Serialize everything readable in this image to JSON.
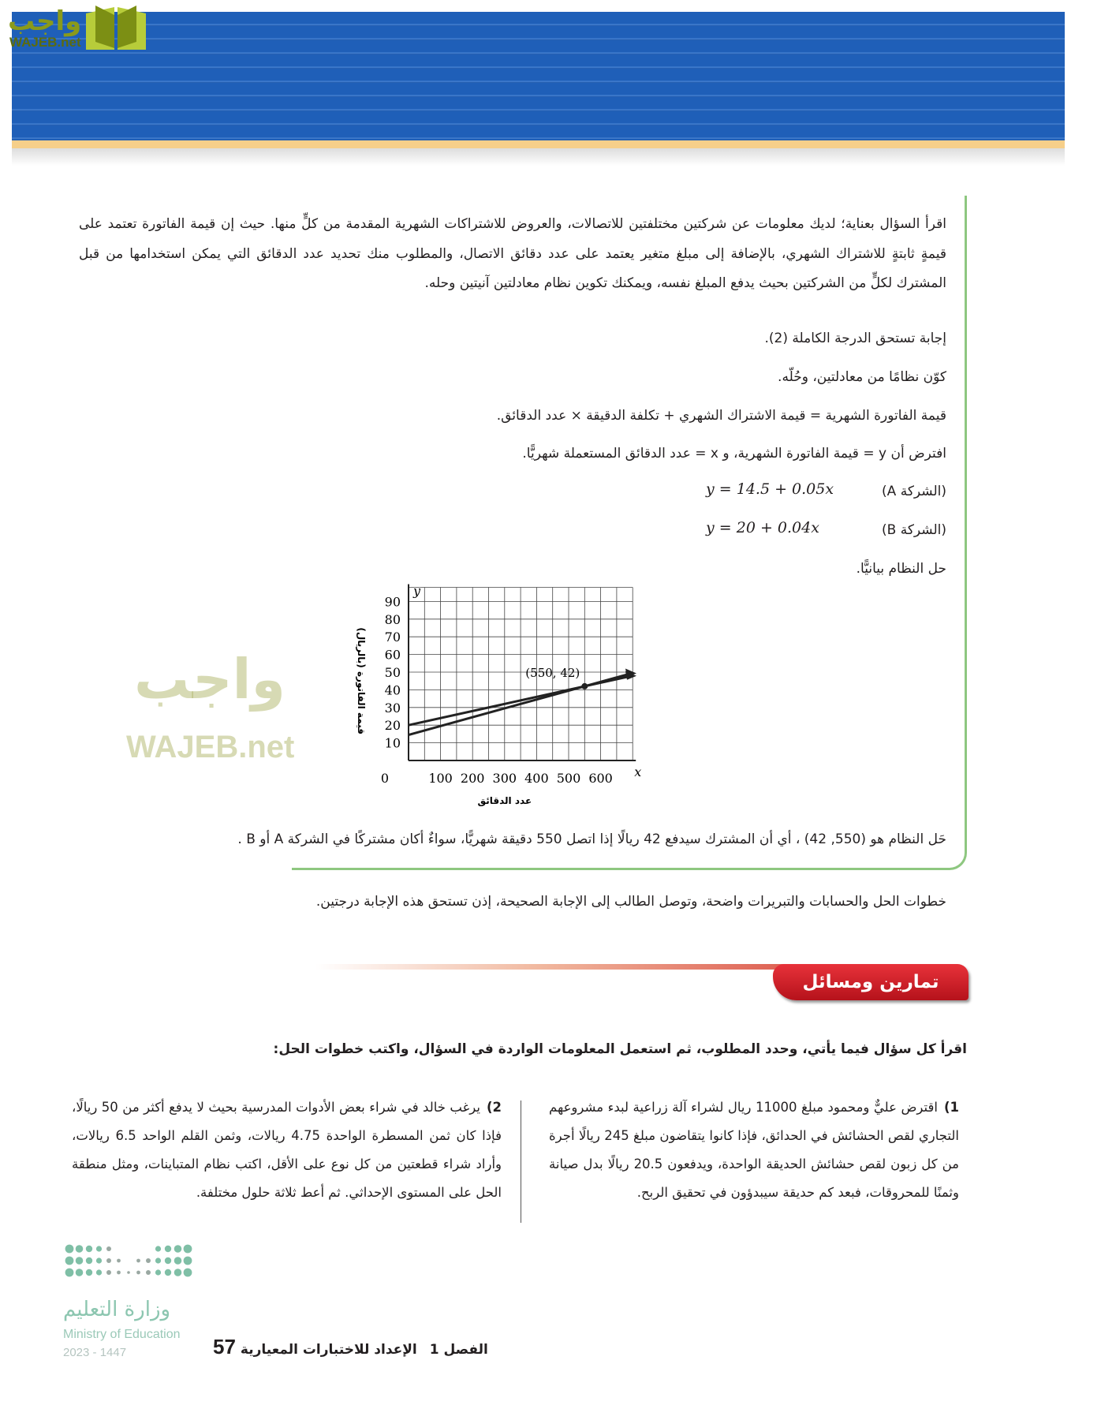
{
  "watermark": {
    "arabic": "واجب",
    "latin": "WAJEB.net"
  },
  "intro": "اقرأ السؤال بعناية؛ لديك معلومات عن شركتين مختلفتين للاتصالات، والعروض للاشتراكات الشهرية المقدمة من كلٍّ منها. حيث إن قيمة الفاتورة تعتمد على قيمةٍ ثابتةٍ للاشتراك الشهري، بالإضافة إلى مبلغ متغير يعتمد على عدد دقائق الاتصال، والمطلوب منك تحديد عدد الدقائق التي يمكن استخدامها من قبل المشترك لكلٍّ من الشركتين بحيث يدفع المبلغ نفسه، ويمكنك تكوين نظام معادلتين آنيتين وحله.",
  "answer": {
    "line1": "إجابة تستحق الدرجة الكاملة (2).",
    "line2": "كوّن نظامًا من معادلتين، وحُلّه.",
    "line3": "قيمة الفاتورة الشهرية = قيمة الاشتراك الشهري + تكلفة الدقيقة × عدد الدقائق.",
    "line4": "افترض أن y = قيمة الفاتورة الشهرية، و x = عدد الدقائق المستعملة شهريًّا.",
    "companyA_label": "(الشركة A)",
    "companyA_eq": "y = 14.5 + 0.05x",
    "companyB_label": "(الشركة B)",
    "companyB_eq": "y = 20 + 0.04x",
    "line5": "حل النظام بيانيًّا.",
    "solution": "حَل النظام هو (550, 42) ، أي أن المشترك سيدفع 42 ريالًا إذا اتصل 550 دقيقة شهريًّا، سواءٌ أكان مشتركًا في الشركة A أو B .",
    "grading": "خطوات الحل والحسابات والتبريرات واضحة، وتوصل الطالب إلى الإجابة الصحيحة، إذن تستحق هذه الإجابة درجتين."
  },
  "chart_data": {
    "type": "line",
    "xlabel": "عدد الدقائق",
    "ylabel": "قيمة الفاتورة (بالريال)",
    "x_axis_letter": "x",
    "y_axis_letter": "y",
    "xlim": [
      0,
      700
    ],
    "ylim": [
      0,
      98
    ],
    "x_ticks": [
      0,
      100,
      200,
      300,
      400,
      500,
      600
    ],
    "y_ticks": [
      10,
      20,
      30,
      40,
      50,
      60,
      70,
      80,
      90
    ],
    "grid": true,
    "series": [
      {
        "intercept": 14.5,
        "slope": 0.05
      },
      {
        "intercept": 20,
        "slope": 0.04
      }
    ],
    "annotation": {
      "label": "(550, 42)",
      "x": 550,
      "y": 42
    }
  },
  "section": {
    "title": "تمارين ومسائل",
    "instruction": "اقرأ كل سؤال فيما يأتي، وحدد المطلوب، ثم استعمل المعلومات الواردة في السؤال، واكتب خطوات الحل:"
  },
  "exercises": [
    {
      "number": "1)",
      "text": "اقترض عليٌّ ومحمود مبلغ 11000 ريال لشراء آلة زراعية لبدء مشروعهم التجاري لقص الحشائش في الحدائق، فإذا كانوا يتقاضون مبلغ 245 ريالًا أجرة من كل زبون لقص حشائش الحديقة الواحدة، ويدفعون 20.5 ريالًا بدل صيانة وثمنًا للمحروقات، فبعد كم حديقة سيبدؤون في تحقيق الربح."
    },
    {
      "number": "2)",
      "text": "يرغب خالد في شراء بعض الأدوات المدرسية بحيث لا يدفع أكثر من 50 ريالًا، فإذا كان ثمن المسطرة الواحدة 4.75 ريالات، وثمن القلم الواحد 6.5 ريالات، وأراد شراء قطعتين من كل نوع على الأقل، اكتب نظام المتباينات، ومثل منطقة الحل على المستوى الإحداثي. ثم أعط ثلاثة حلول مختلفة."
    }
  ],
  "ministry": {
    "arabic": "وزارة التعليم",
    "english": "Ministry of Education",
    "year": "2023 - 1447"
  },
  "footer": {
    "page": "57",
    "chapter": "الفصل 1",
    "title": "الإعداد للاختبارات المعيارية"
  },
  "colors": {
    "banner": "#1f5fb8",
    "accent_red": "#d0202a",
    "box_border": "#8ec780",
    "ministry": "#7fbfa6"
  }
}
